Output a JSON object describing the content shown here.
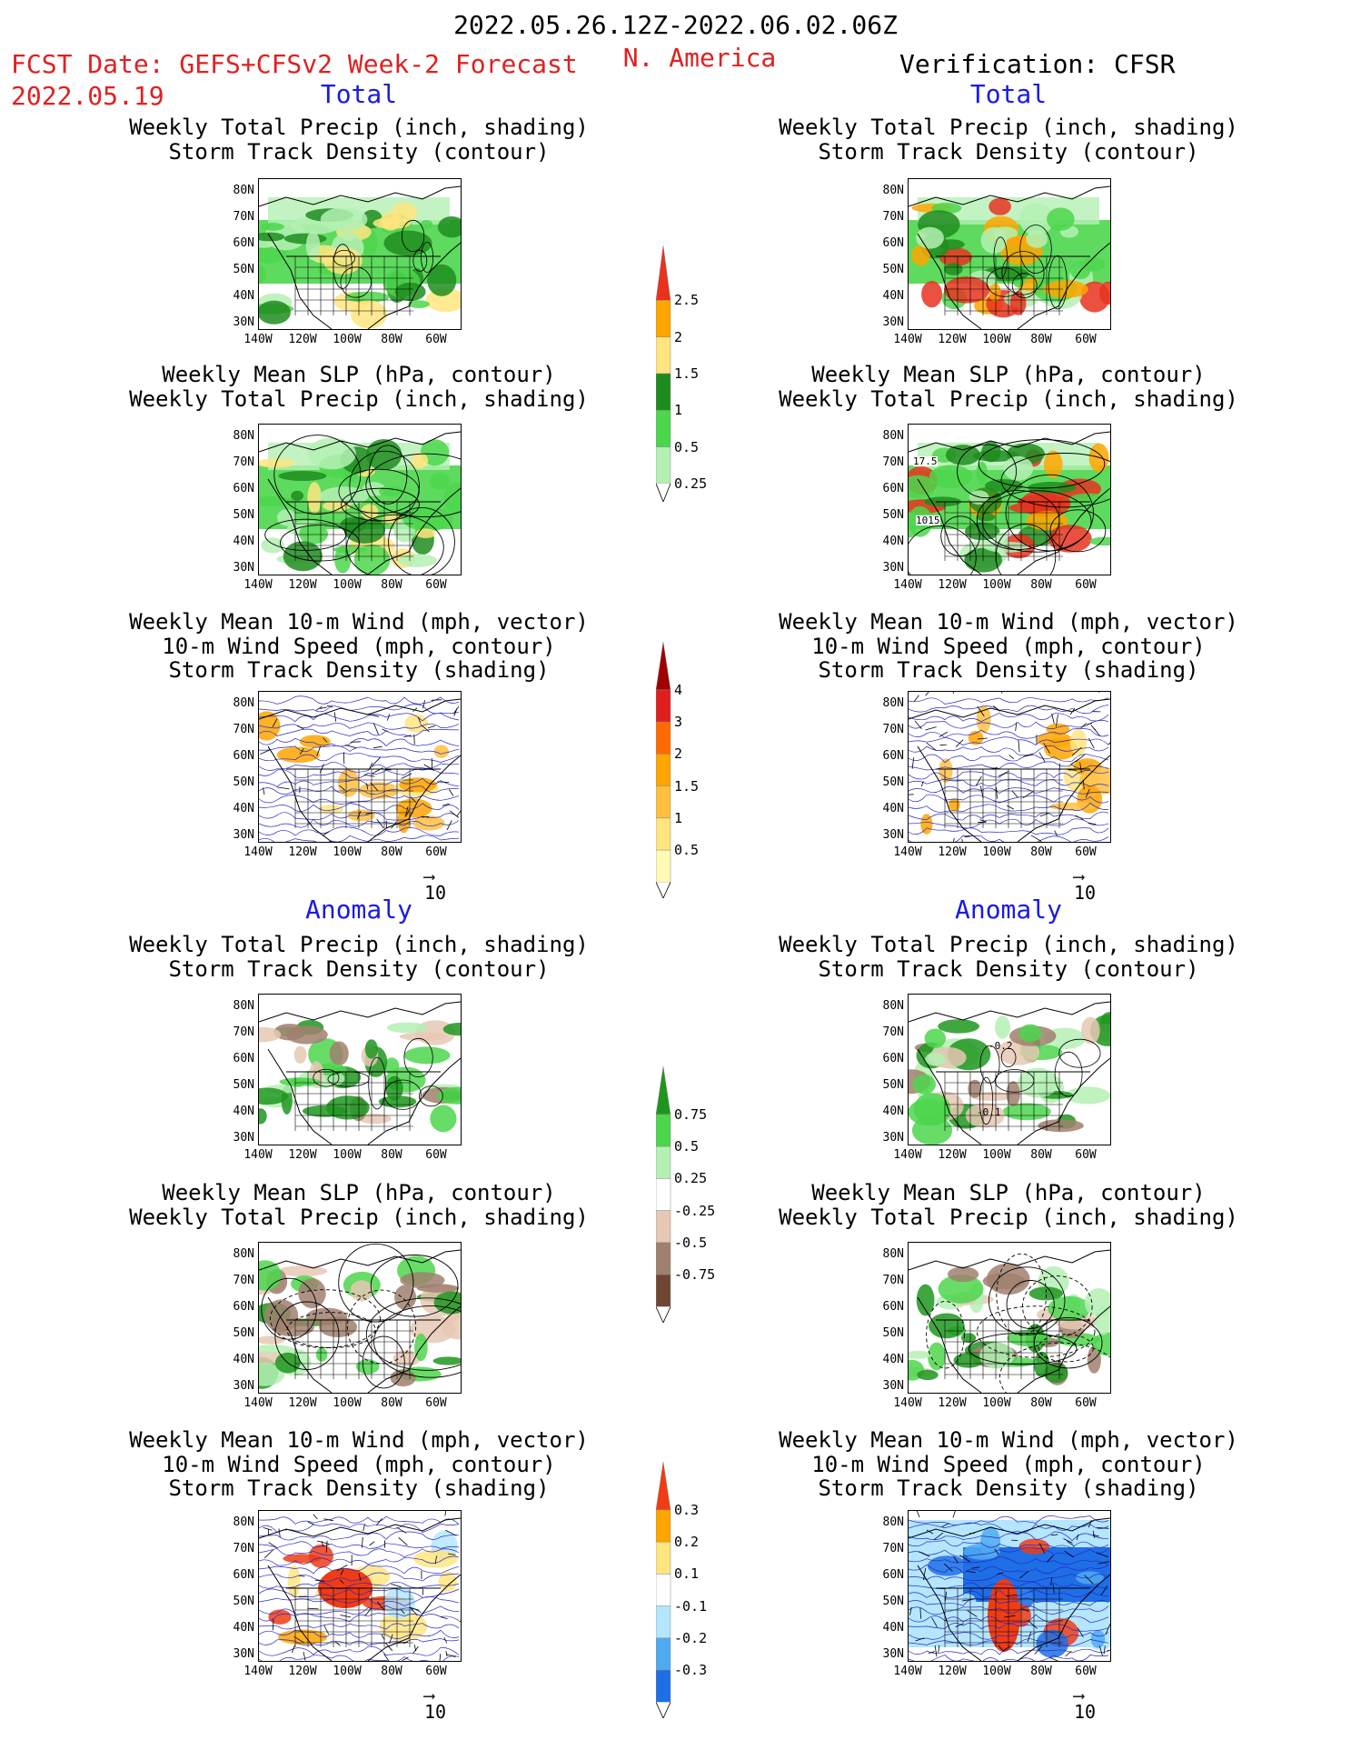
{
  "header": {
    "period": "2022.05.26.12Z-2022.06.02.06Z",
    "fcst_date_label": "FCST Date: GEFS+CFSv2 Week-2 Forecast",
    "fcst_date": "2022.05.19",
    "region": "N. America",
    "verification": "Verification: CFSR"
  },
  "sections": {
    "total": "Total",
    "anomaly": "Anomaly"
  },
  "panel_titles": {
    "precip_storm": [
      "Weekly Total Precip (inch, shading)",
      "Storm Track Density (contour)"
    ],
    "slp_precip": [
      "Weekly Mean SLP (hPa, contour)",
      "Weekly Total Precip (inch, shading)"
    ],
    "wind_storm": [
      "Weekly Mean 10-m Wind (mph, vector)",
      "10-m Wind Speed (mph, contour)",
      "Storm Track Density (shading)"
    ]
  },
  "axes": {
    "lat_ticks": [
      "80N",
      "70N",
      "60N",
      "50N",
      "40N",
      "30N"
    ],
    "lon_ticks": [
      "140W",
      "120W",
      "100W",
      "80W",
      "60W"
    ]
  },
  "contour_labels": {
    "slp_1": "1015",
    "slp_2": "17.5",
    "anom_1": "-0.2",
    "anom_2": "-0.1"
  },
  "vector_ref": "10",
  "colorbars": {
    "total_precip": {
      "labels": [
        "2.5",
        "2",
        "1.5",
        "1",
        "0.5",
        "0.25"
      ],
      "colors": [
        "#e8321e",
        "#ffa500",
        "#ffe57f",
        "#1e8c1e",
        "#4cd64c",
        "#b4f0b4"
      ]
    },
    "total_storm": {
      "labels": [
        "4",
        "3",
        "2",
        "1.5",
        "1",
        "0.5"
      ],
      "colors": [
        "#a00000",
        "#e01e1e",
        "#ff6a00",
        "#ffa500",
        "#ffc040",
        "#ffe57f",
        "#fffab4"
      ]
    },
    "anom_precip": {
      "labels": [
        "0.75",
        "0.5",
        "0.25",
        "-0.25",
        "-0.5",
        "-0.75"
      ],
      "colors": [
        "#1e961e",
        "#4cd64c",
        "#b4f0b4",
        "#ffffff",
        "#e6c8b4",
        "#a0806e",
        "#6e4632"
      ]
    },
    "anom_storm": {
      "labels": [
        "0.3",
        "0.2",
        "0.1",
        "-0.1",
        "-0.2",
        "-0.3"
      ],
      "colors": [
        "#f03c14",
        "#ffa500",
        "#ffe57f",
        "#ffffff",
        "#b4e6ff",
        "#50aaf0",
        "#1e6ee6"
      ]
    }
  }
}
